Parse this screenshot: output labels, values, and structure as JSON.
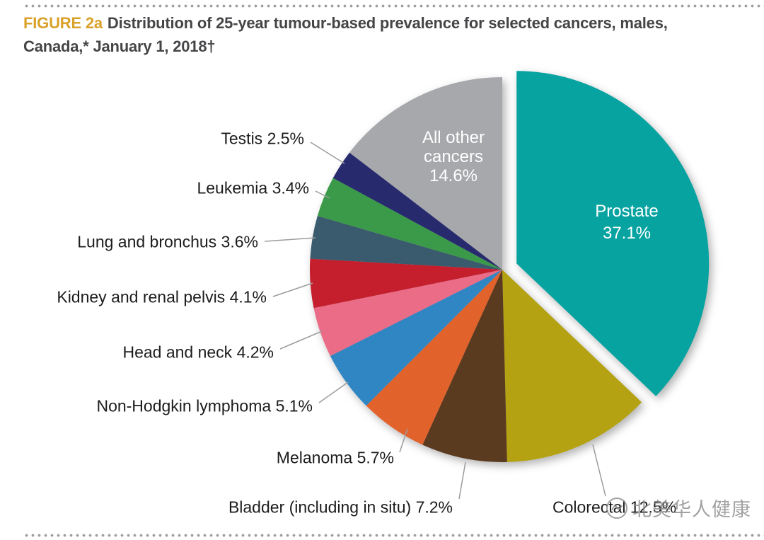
{
  "header": {
    "figure_tag": "FIGURE 2a",
    "title_line1": "Distribution of 25-year tumour-based prevalence for selected cancers, males,",
    "title_line2": "Canada,* January 1, 2018†"
  },
  "chart_data": {
    "type": "pie",
    "title": "Distribution of 25-year tumour-based prevalence for selected cancers, males, Canada, January 1, 2018",
    "unit": "%",
    "direction": "clockwise",
    "start_angle": "12-o'clock",
    "legend_position": "labels-with-leader-lines",
    "slices": [
      {
        "label": "Prostate",
        "value": 37.1,
        "color": "#07a3a1",
        "exploded": true,
        "label_placement": "inside"
      },
      {
        "label": "Colorectal",
        "value": 12.5,
        "color": "#b4a212",
        "label_placement": "outside"
      },
      {
        "label": "Bladder (including in situ)",
        "value": 7.2,
        "color": "#5b3b20",
        "label_placement": "outside"
      },
      {
        "label": "Melanoma",
        "value": 5.7,
        "color": "#e2622b",
        "label_placement": "outside"
      },
      {
        "label": "Non-Hodgkin lymphoma",
        "value": 5.1,
        "color": "#2f86c3",
        "label_placement": "outside"
      },
      {
        "label": "Head and neck",
        "value": 4.2,
        "color": "#ea6c87",
        "label_placement": "outside"
      },
      {
        "label": "Kidney and renal pelvis",
        "value": 4.1,
        "color": "#c51f2e",
        "label_placement": "outside"
      },
      {
        "label": "Lung and bronchus",
        "value": 3.6,
        "color": "#3a5a6d",
        "label_placement": "outside"
      },
      {
        "label": "Leukemia",
        "value": 3.4,
        "color": "#3b9a49",
        "label_placement": "outside"
      },
      {
        "label": "Testis",
        "value": 2.5,
        "color": "#282a6e",
        "label_placement": "outside"
      },
      {
        "label": "All other cancers",
        "value": 14.6,
        "color": "#a6a8ab",
        "label_placement": "inside"
      }
    ]
  },
  "watermark": {
    "text": "北美华人健康"
  }
}
